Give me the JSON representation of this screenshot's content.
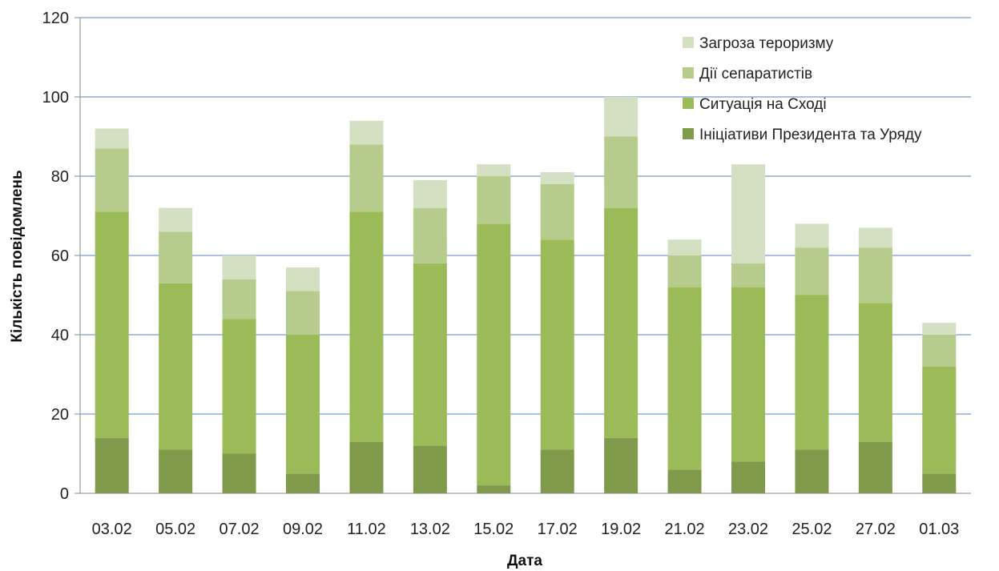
{
  "chart_data": {
    "type": "bar",
    "stacked": true,
    "xlabel": "Дата",
    "ylabel": "Кількість повідомлень",
    "ylim": [
      0,
      120
    ],
    "yticks": [
      0,
      20,
      40,
      60,
      80,
      100,
      120
    ],
    "grid": true,
    "legend_position": "top-right",
    "categories": [
      "03.02",
      "05.02",
      "07.02",
      "09.02",
      "11.02",
      "13.02",
      "15.02",
      "17.02",
      "19.02",
      "21.02",
      "23.02",
      "25.02",
      "27.02",
      "01.03"
    ],
    "series": [
      {
        "name": "Ініціативи Президента та Уряду",
        "color": "#7f9a4a",
        "values": [
          14,
          11,
          10,
          5,
          13,
          12,
          2,
          11,
          14,
          6,
          8,
          11,
          13,
          5
        ]
      },
      {
        "name": "Ситуація на Сході",
        "color": "#9bbb59",
        "values": [
          57,
          42,
          34,
          35,
          58,
          46,
          66,
          53,
          58,
          46,
          44,
          39,
          35,
          27
        ]
      },
      {
        "name": "Дії сепаратистів",
        "color": "#b5cc8d",
        "values": [
          16,
          13,
          10,
          11,
          17,
          14,
          12,
          14,
          18,
          8,
          6,
          12,
          14,
          8
        ]
      },
      {
        "name": "Загроза тероризму",
        "color": "#d3e0c2",
        "values": [
          5,
          6,
          6,
          6,
          6,
          7,
          3,
          3,
          10,
          4,
          25,
          6,
          5,
          3
        ]
      }
    ],
    "gridline_color": "#a9c0e3"
  }
}
